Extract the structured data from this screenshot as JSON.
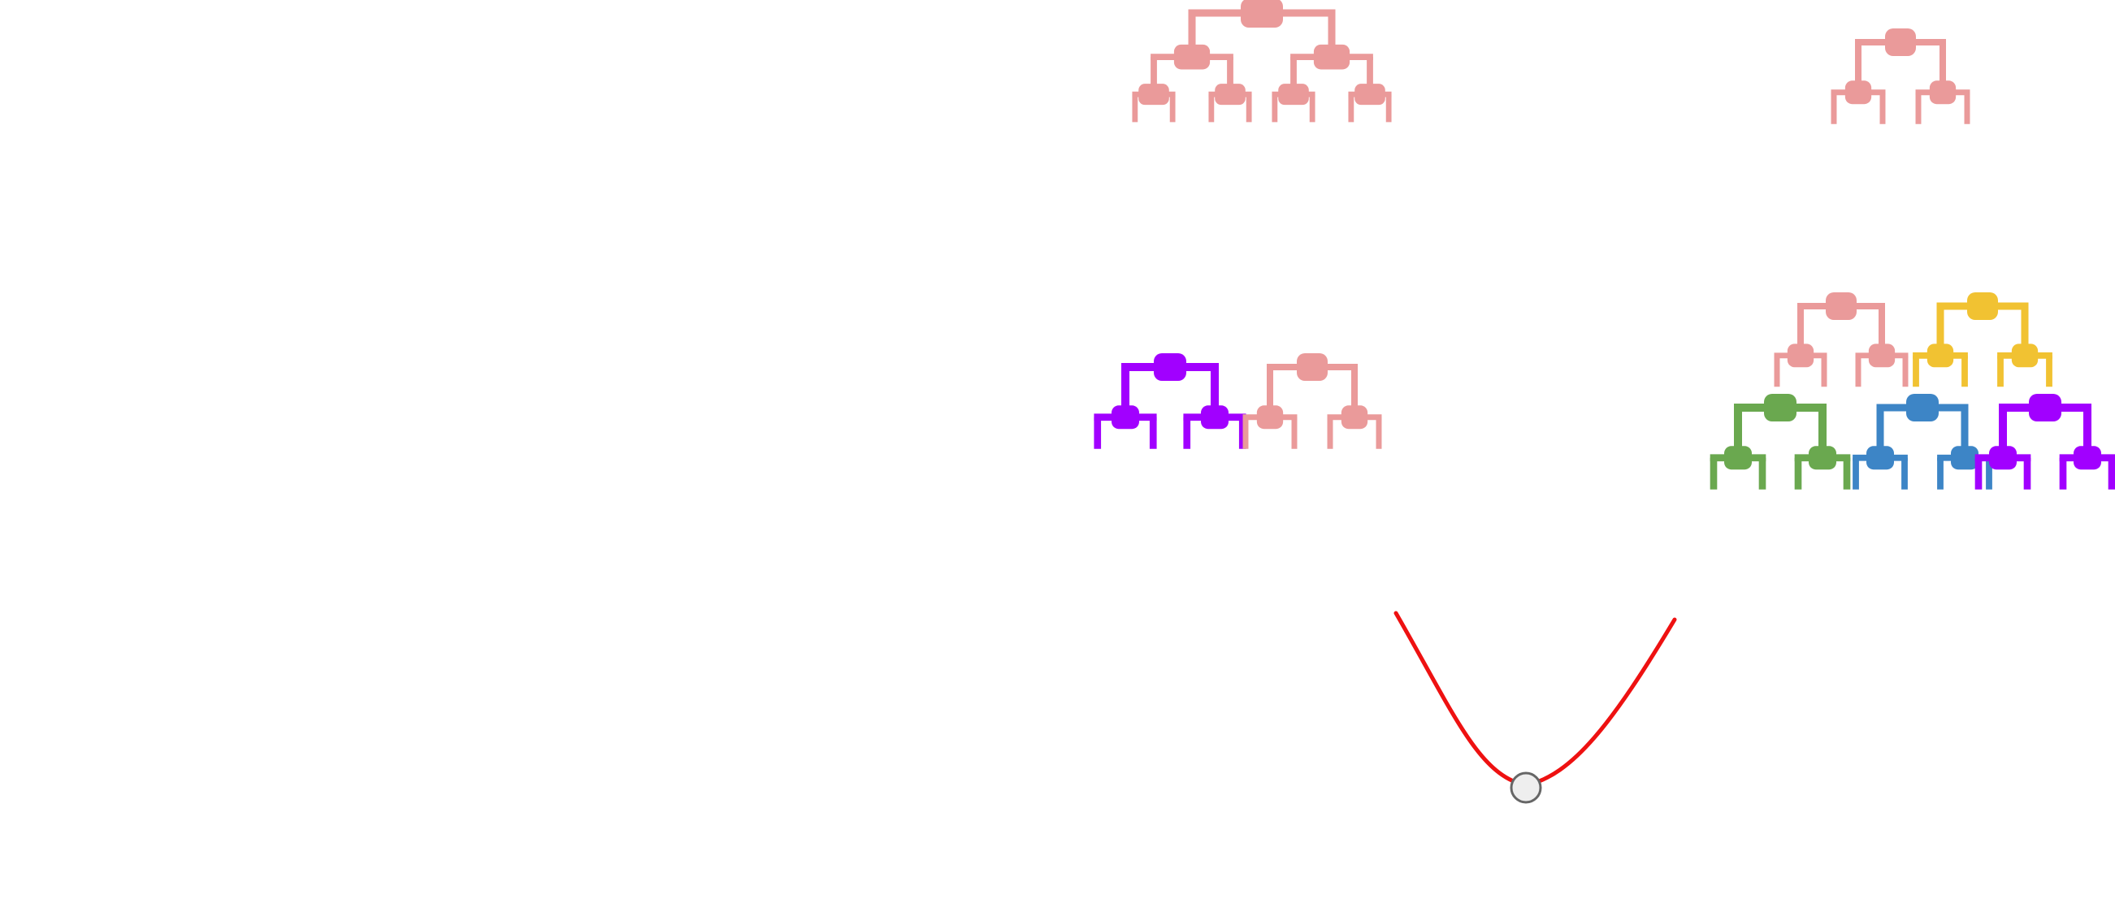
{
  "diagram": {
    "trees": [
      {
        "id": "tree-top-large",
        "depth": 3,
        "color": "#EA9A9A"
      },
      {
        "id": "tree-top-small",
        "depth": 2,
        "color": "#EA9A9A"
      },
      {
        "id": "tree-mid-purple",
        "depth": 2,
        "color": "#A100FF"
      },
      {
        "id": "tree-mid-pink",
        "depth": 2,
        "color": "#EA9A9A"
      },
      {
        "id": "tree-cluster-pink",
        "depth": 2,
        "color": "#EA9A9A"
      },
      {
        "id": "tree-cluster-yellow",
        "depth": 2,
        "color": "#F1C232"
      },
      {
        "id": "tree-cluster-green",
        "depth": 2,
        "color": "#6AA84F"
      },
      {
        "id": "tree-cluster-blue",
        "depth": 2,
        "color": "#3D85C6"
      },
      {
        "id": "tree-cluster-purple",
        "depth": 2,
        "color": "#A100FF"
      }
    ],
    "curve": {
      "color": "#EE1111",
      "marker_fill": "#EEEEEE",
      "marker_stroke": "#666666"
    }
  }
}
